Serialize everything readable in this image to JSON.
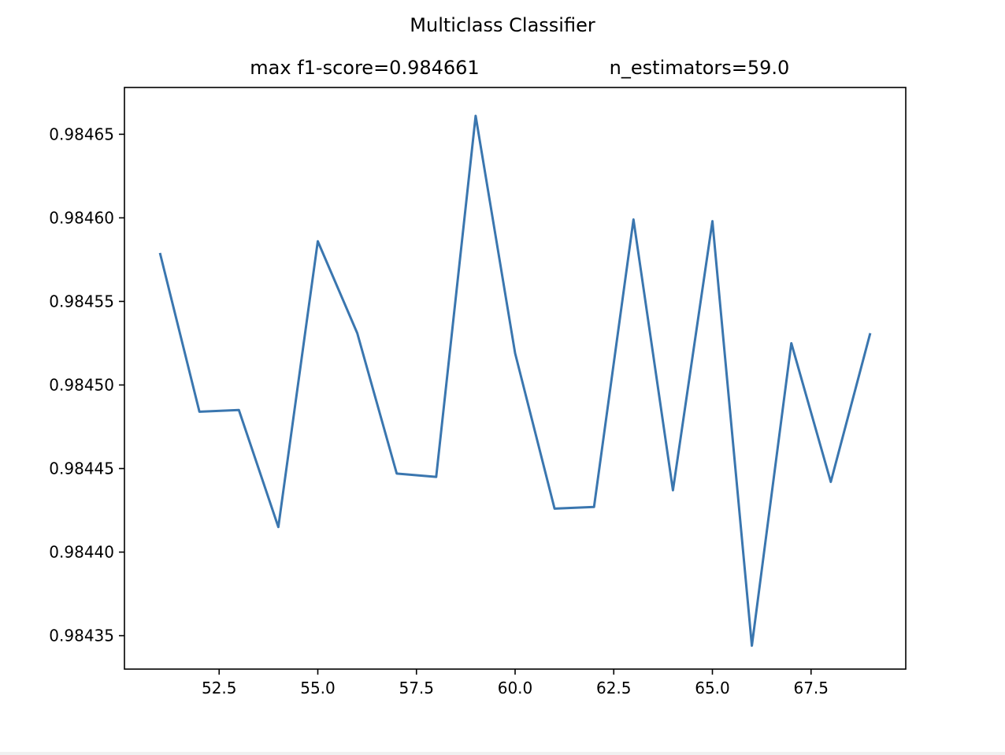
{
  "chart_data": {
    "type": "line",
    "title": "Multiclass Classifier",
    "subtitle_left": "max f1-score=0.984661",
    "subtitle_right": "n_estimators=59.0",
    "xlabel": "",
    "ylabel": "",
    "xlim": [
      50.1,
      69.9
    ],
    "ylim": [
      0.98433,
      0.984678
    ],
    "grid": false,
    "line_color": "#3a76af",
    "x_ticks": [
      52.5,
      55.0,
      57.5,
      60.0,
      62.5,
      65.0,
      67.5
    ],
    "x_tick_labels": [
      "52.5",
      "55.0",
      "57.5",
      "60.0",
      "62.5",
      "65.0",
      "67.5"
    ],
    "y_ticks": [
      0.98435,
      0.9844,
      0.98445,
      0.9845,
      0.98455,
      0.9846,
      0.98465
    ],
    "y_tick_labels": [
      "0.98435",
      "0.98440",
      "0.98445",
      "0.98450",
      "0.98455",
      "0.98460",
      "0.98465"
    ],
    "series": [
      {
        "x": [
          51,
          52,
          53,
          54,
          55,
          56,
          57,
          58,
          59,
          60,
          61,
          62,
          63,
          64,
          65,
          66,
          67,
          68,
          69
        ],
        "values": [
          0.984579,
          0.984484,
          0.984485,
          0.984415,
          0.984586,
          0.984531,
          0.984447,
          0.984445,
          0.984661,
          0.984519,
          0.984426,
          0.984427,
          0.984599,
          0.984437,
          0.984598,
          0.984344,
          0.984525,
          0.984442,
          0.984531
        ]
      }
    ]
  }
}
